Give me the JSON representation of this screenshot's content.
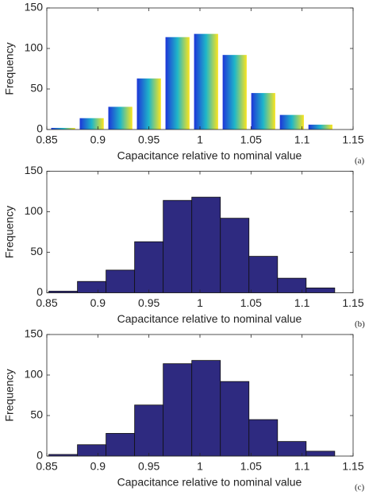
{
  "chart_data": [
    {
      "type": "histogram",
      "style": "gradient",
      "color": [
        "#1d35d8",
        "#1fb6c9",
        "#fbe41e"
      ],
      "bins": [
        0.852,
        0.88,
        0.908,
        0.936,
        0.964,
        0.992,
        1.02,
        1.048,
        1.076,
        1.104,
        1.132
      ],
      "values": [
        2,
        14,
        28,
        63,
        114,
        118,
        92,
        45,
        18,
        6
      ],
      "xlabel": "Capacitance relative to nominal value",
      "ylabel": "Frequency",
      "label": "(a)",
      "xlim": [
        0.85,
        1.15
      ],
      "xticks": [
        0.85,
        0.9,
        0.95,
        1,
        1.05,
        1.1,
        1.15
      ],
      "ylim": [
        0,
        150
      ],
      "yticks": [
        0,
        50,
        100,
        150
      ]
    },
    {
      "type": "histogram",
      "style": "flat",
      "color": "#2e2a80",
      "bins": [
        0.852,
        0.88,
        0.908,
        0.936,
        0.964,
        0.992,
        1.02,
        1.048,
        1.076,
        1.104,
        1.132
      ],
      "values": [
        2,
        14,
        28,
        63,
        114,
        118,
        92,
        45,
        18,
        6
      ],
      "xlabel": "Capacitance relative to nominal value",
      "ylabel": "Frequency",
      "label": "(b)",
      "xlim": [
        0.85,
        1.15
      ],
      "xticks": [
        0.85,
        0.9,
        0.95,
        1,
        1.05,
        1.1,
        1.15
      ],
      "ylim": [
        0,
        150
      ],
      "yticks": [
        0,
        50,
        100,
        150
      ]
    },
    {
      "type": "histogram",
      "style": "flat",
      "color": "#2e2a80",
      "bins": [
        0.852,
        0.88,
        0.908,
        0.936,
        0.964,
        0.992,
        1.02,
        1.048,
        1.076,
        1.104,
        1.132
      ],
      "values": [
        2,
        14,
        28,
        63,
        114,
        118,
        92,
        45,
        18,
        6
      ],
      "xlabel": "Capacitance relative to nominal value",
      "ylabel": "Frequency",
      "label": "(c)",
      "xlim": [
        0.85,
        1.15
      ],
      "xticks": [
        0.85,
        0.9,
        0.95,
        1,
        1.05,
        1.1,
        1.15
      ],
      "ylim": [
        0,
        150
      ],
      "yticks": [
        0,
        50,
        100,
        150
      ]
    }
  ]
}
